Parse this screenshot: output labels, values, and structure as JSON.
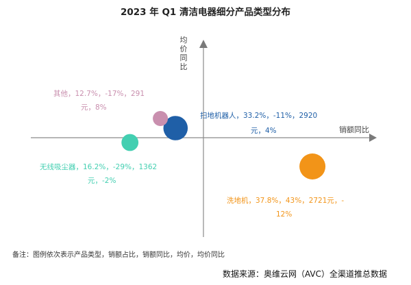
{
  "title": "2023 年 Q1 清洁电器细分产品类型分布",
  "note": "备注：图例依次表示产品类型，销额占比，销额同比，均价，均价同比",
  "source": "数据来源：奥维云网（AVC）全渠道推总数据",
  "chart_data": {
    "type": "scatter",
    "title": "2023 年 Q1 清洁电器细分产品类型分布",
    "xlabel": "销额同比",
    "ylabel": "均价同比",
    "grid": false,
    "legend": "none",
    "series": [
      {
        "name": "扫地机器人",
        "x": -11,
        "y": 4,
        "share": 33.2,
        "avg_price": 2920,
        "color": "#1f5fa7",
        "label_lines": [
          "扫地机器人，33.2%，-11%，2920",
          "元，4%"
        ]
      },
      {
        "name": "洗地机",
        "x": 43,
        "y": -12,
        "share": 37.8,
        "avg_price": 2721,
        "color": "#f29418",
        "label_lines": [
          "洗地机，37.8%，43%，2721元，-",
          "12%"
        ]
      },
      {
        "name": "无线吸尘器",
        "x": -29,
        "y": -2,
        "share": 16.2,
        "avg_price": 1362,
        "color": "#43cfb1",
        "label_lines": [
          "无线吸尘器，16.2%，-29%，1362",
          "元，-2%"
        ]
      },
      {
        "name": "其他",
        "x": -17,
        "y": 8,
        "share": 12.7,
        "avg_price": 291,
        "color": "#c98fae",
        "label_lines": [
          "其他，12.7%，-17%，291",
          "元，8%"
        ]
      }
    ],
    "xlim": [
      -100,
      85
    ],
    "ylim": [
      -40,
      40
    ]
  }
}
